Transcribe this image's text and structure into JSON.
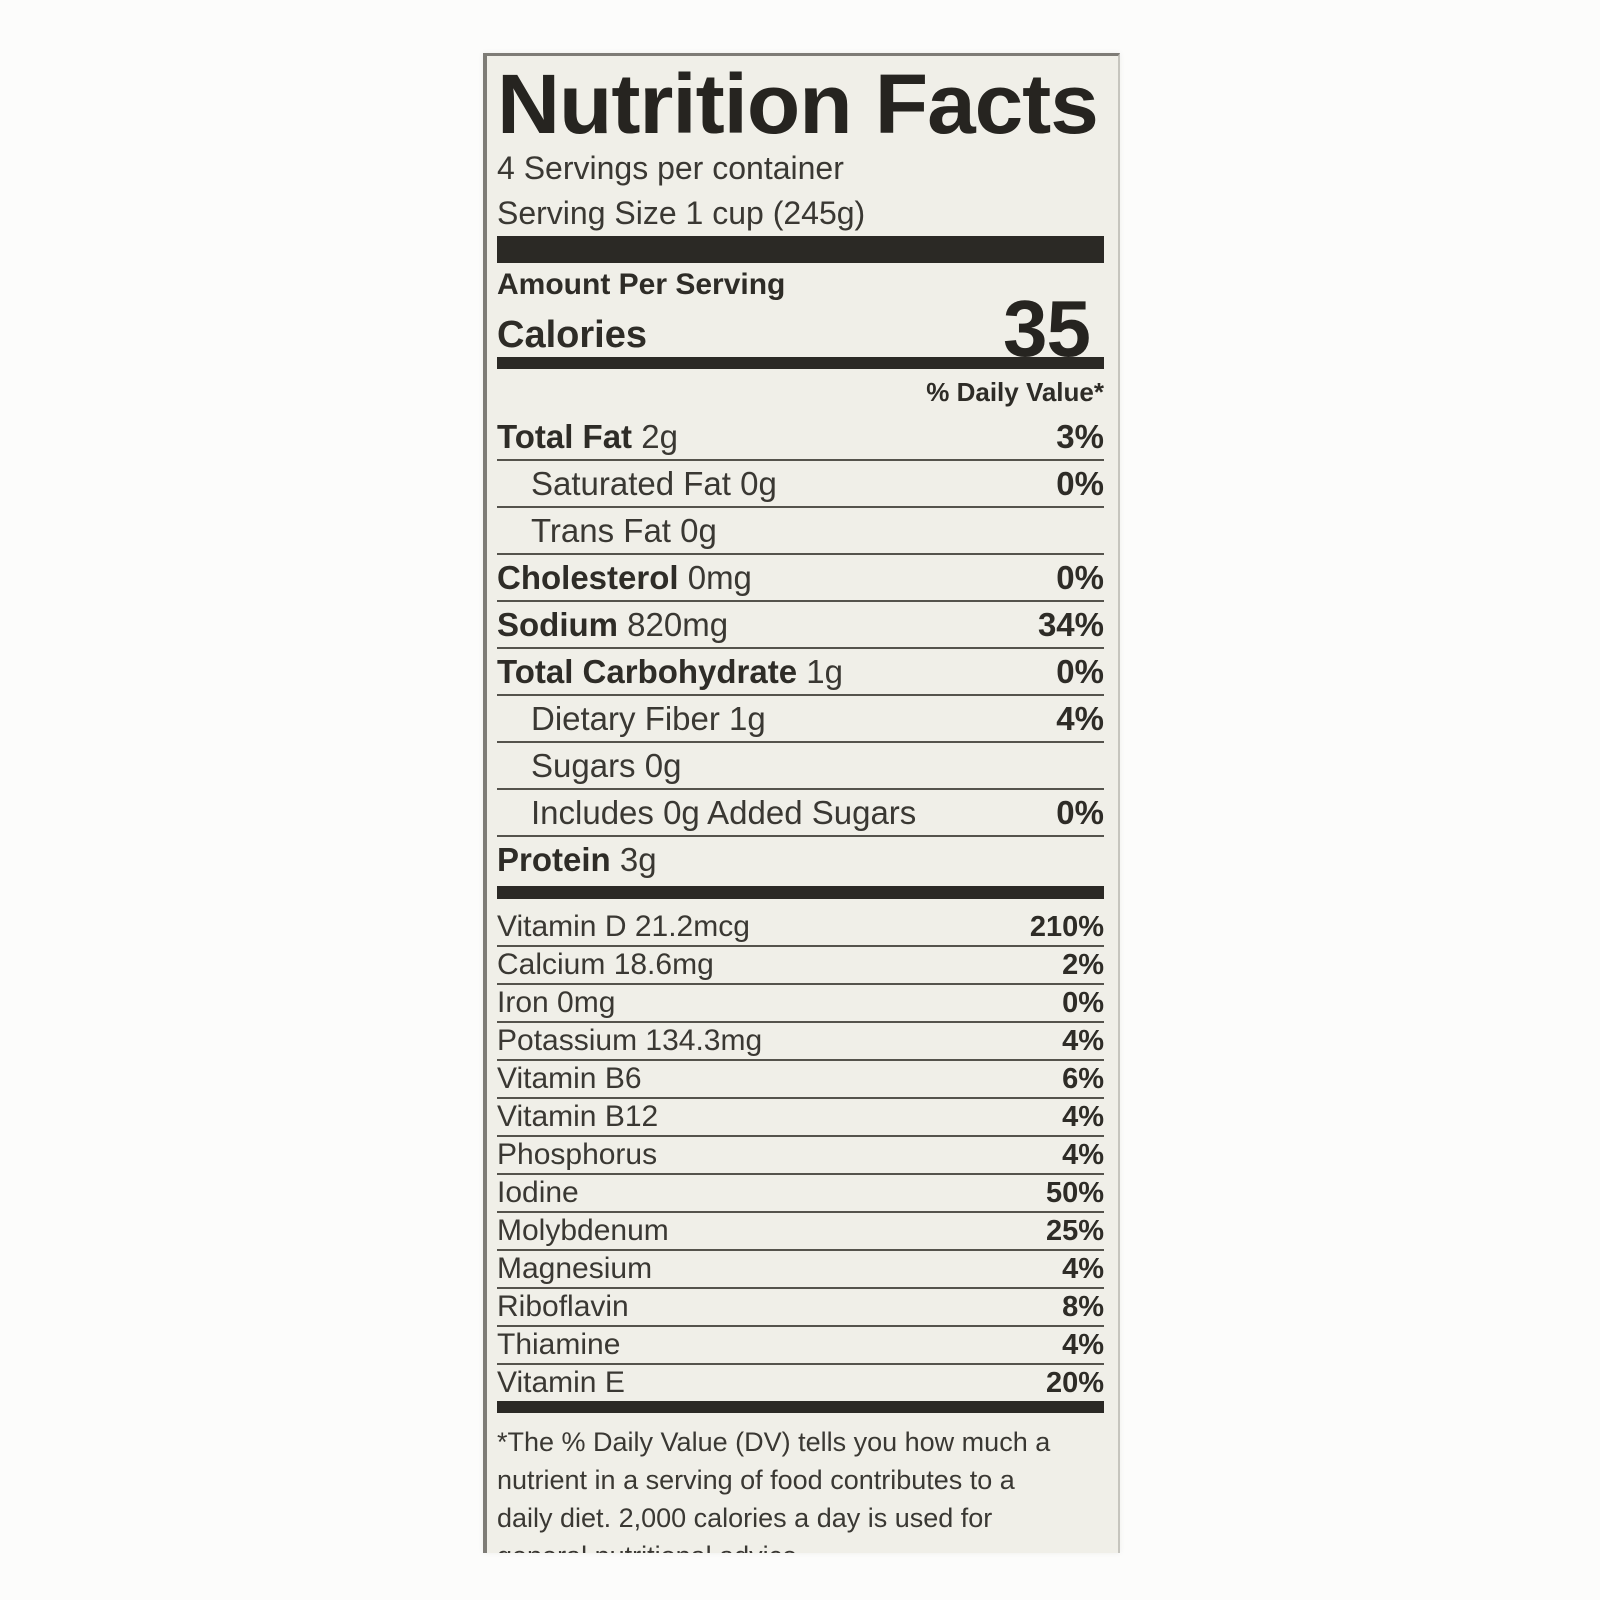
{
  "label": {
    "title": "Nutrition Facts",
    "servings_per_container": "4 Servings per container",
    "serving_size": "Serving Size 1 cup (245g)",
    "amount_per_serving": "Amount Per Serving",
    "calories_label": "Calories",
    "calories_value": "35",
    "daily_value_header": "% Daily Value*",
    "nutrients": [
      {
        "name": "Total Fat",
        "amount": "2g",
        "dv": "3%",
        "bold": true,
        "indent": 0
      },
      {
        "name": "Saturated Fat",
        "amount": "0g",
        "dv": "0%",
        "bold": false,
        "indent": 1
      },
      {
        "name": "Trans Fat",
        "amount": "0g",
        "dv": "",
        "bold": false,
        "indent": 1
      },
      {
        "name": "Cholesterol",
        "amount": "0mg",
        "dv": "0%",
        "bold": true,
        "indent": 0
      },
      {
        "name": "Sodium",
        "amount": "820mg",
        "dv": "34%",
        "bold": true,
        "indent": 0
      },
      {
        "name": "Total Carbohydrate",
        "amount": "1g",
        "dv": "0%",
        "bold": true,
        "indent": 0
      },
      {
        "name": "Dietary Fiber",
        "amount": "1g",
        "dv": "4%",
        "bold": false,
        "indent": 1
      },
      {
        "name": "Sugars",
        "amount": "0g",
        "dv": "",
        "bold": false,
        "indent": 1
      },
      {
        "name": "Includes 0g Added Sugars",
        "amount": "",
        "dv": "0%",
        "bold": false,
        "indent": 1
      },
      {
        "name": "Protein",
        "amount": "3g",
        "dv": "",
        "bold": true,
        "indent": 0
      }
    ],
    "micronutrients": [
      {
        "name": "Vitamin D 21.2mcg",
        "dv": "210%"
      },
      {
        "name": "Calcium 18.6mg",
        "dv": "2%"
      },
      {
        "name": "Iron 0mg",
        "dv": "0%"
      },
      {
        "name": "Potassium 134.3mg",
        "dv": "4%"
      },
      {
        "name": "Vitamin B6",
        "dv": "6%"
      },
      {
        "name": "Vitamin B12",
        "dv": "4%"
      },
      {
        "name": "Phosphorus",
        "dv": "4%"
      },
      {
        "name": "Iodine",
        "dv": "50%"
      },
      {
        "name": "Molybdenum",
        "dv": "25%"
      },
      {
        "name": "Magnesium",
        "dv": "4%"
      },
      {
        "name": "Riboflavin",
        "dv": "8%"
      },
      {
        "name": "Thiamine",
        "dv": "4%"
      },
      {
        "name": "Vitamin E",
        "dv": "20%"
      }
    ],
    "footnote_lines": [
      "*The % Daily Value (DV) tells you how much a",
      "nutrient in a serving of food contributes to a",
      "daily diet. 2,000 calories a day is used for",
      "general nutritional advice"
    ],
    "colors": {
      "label_background": "#f0efe8",
      "ink": "#2e2c27",
      "separator_bar": "#2b2925",
      "hairline": "#55534c",
      "page_background": "#fcfcfb"
    }
  }
}
